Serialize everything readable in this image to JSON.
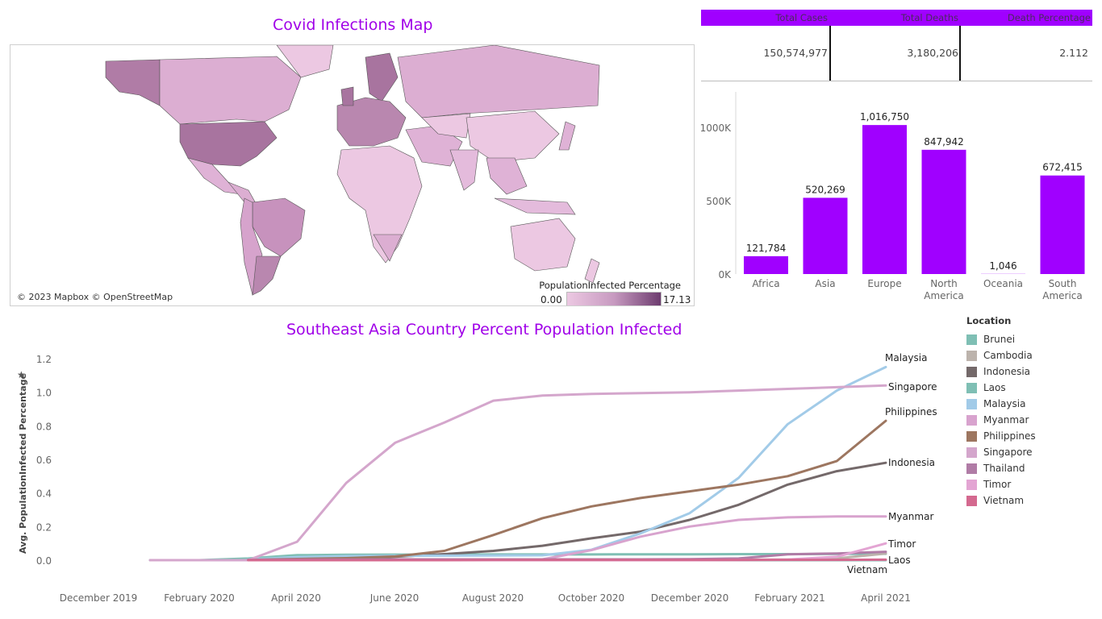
{
  "colors": {
    "accent": "#a000ff",
    "title": "#a000e8",
    "map_low": "#ecc8e2",
    "map_high": "#6d3c6f"
  },
  "map": {
    "title": "Covid Infections Map",
    "credit": "© 2023 Mapbox © OpenStreetMap",
    "legend_title": "PopulationInfected Percentage",
    "legend_min": "0.00",
    "legend_max": "17.13"
  },
  "kpi": {
    "headers": [
      "Total Cases",
      "Total Deaths",
      "Death Percentage"
    ],
    "values": [
      "150,574,977",
      "3,180,206",
      "2.112"
    ]
  },
  "chart_data": [
    {
      "type": "bar",
      "categories": [
        "Africa",
        "Asia",
        "Europe",
        "North America",
        "Oceania",
        "South America"
      ],
      "values": [
        121784,
        520269,
        1016750,
        847942,
        1046,
        672415
      ],
      "value_labels": [
        "121,784",
        "520,269",
        "1,016,750",
        "847,942",
        "1,046",
        "672,415"
      ],
      "yticks": [
        "0K",
        "500K",
        "1000K"
      ],
      "ylim": [
        0,
        1100000
      ],
      "color": "#a000ff",
      "grid": false
    },
    {
      "type": "line",
      "title": "Southeast Asia Country Percent Population Infected",
      "ylabel": "Avg. PopulationInfected Percentage",
      "xticks": [
        "December 2019",
        "February 2020",
        "April 2020",
        "June 2020",
        "August 2020",
        "October 2020",
        "December 2020",
        "February 2021",
        "April 2021"
      ],
      "x": [
        "2020-01",
        "2020-02",
        "2020-03",
        "2020-04",
        "2020-05",
        "2020-06",
        "2020-07",
        "2020-08",
        "2020-09",
        "2020-10",
        "2020-11",
        "2020-12",
        "2021-01",
        "2021-02",
        "2021-03",
        "2021-04"
      ],
      "yticks": [
        "0.0",
        "0.2",
        "0.4",
        "0.6",
        "0.8",
        "1.0",
        "1.2"
      ],
      "ylim": [
        0,
        1.2
      ],
      "legend_title": "Location",
      "legend_position": "right",
      "series": [
        {
          "name": "Brunei",
          "color": "#7fbfb4",
          "values": [
            0.0,
            0.0,
            0.01,
            0.03,
            0.032,
            0.033,
            0.033,
            0.034,
            0.034,
            0.034,
            0.035,
            0.035,
            0.036,
            0.036,
            0.037,
            0.038
          ]
        },
        {
          "name": "Cambodia",
          "color": "#bcb3ac",
          "values": [
            null,
            null,
            0.0,
            0.0,
            0.001,
            0.001,
            0.001,
            0.001,
            0.002,
            0.002,
            0.002,
            0.002,
            0.003,
            0.004,
            0.01,
            0.04
          ]
        },
        {
          "name": "Indonesia",
          "color": "#74696a",
          "values": [
            null,
            null,
            0.0,
            0.003,
            0.01,
            0.02,
            0.036,
            0.055,
            0.086,
            0.13,
            0.17,
            0.24,
            0.33,
            0.45,
            0.53,
            0.58
          ]
        },
        {
          "name": "Laos",
          "color": "#7fbfb4",
          "values": [
            null,
            null,
            0.0,
            0.0,
            0.0,
            0.0,
            0.0,
            0.0,
            0.0,
            0.0,
            0.0,
            0.0,
            0.0,
            0.0,
            0.0,
            0.0
          ]
        },
        {
          "name": "Malaysia",
          "color": "#a2cbe8",
          "values": [
            null,
            null,
            0.005,
            0.018,
            0.024,
            0.026,
            0.027,
            0.028,
            0.029,
            0.062,
            0.16,
            0.28,
            0.49,
            0.81,
            1.01,
            1.15
          ]
        },
        {
          "name": "Myanmar",
          "color": "#d8a3ce",
          "values": [
            null,
            null,
            0.0,
            0.0,
            0.0,
            0.0,
            0.0,
            0.001,
            0.005,
            0.06,
            0.14,
            0.2,
            0.24,
            0.255,
            0.26,
            0.26
          ]
        },
        {
          "name": "Philippines",
          "color": "#9d7660",
          "values": [
            null,
            null,
            0.002,
            0.007,
            0.012,
            0.022,
            0.055,
            0.15,
            0.25,
            0.32,
            0.37,
            0.41,
            0.45,
            0.5,
            0.59,
            0.83
          ]
        },
        {
          "name": "Singapore",
          "color": "#d4a6cc",
          "values": [
            0.0,
            0.0,
            0.0,
            0.11,
            0.46,
            0.7,
            0.82,
            0.95,
            0.98,
            0.99,
            0.995,
            1.0,
            1.01,
            1.02,
            1.03,
            1.04
          ]
        },
        {
          "name": "Thailand",
          "color": "#b07ca6",
          "values": [
            null,
            null,
            0.002,
            0.004,
            0.004,
            0.005,
            0.005,
            0.005,
            0.005,
            0.005,
            0.005,
            0.006,
            0.01,
            0.035,
            0.04,
            0.05
          ]
        },
        {
          "name": "Timor",
          "color": "#e3a5d3",
          "values": [
            null,
            null,
            null,
            null,
            null,
            0.0,
            0.0,
            0.0,
            0.0,
            0.0,
            0.0,
            0.0,
            0.001,
            0.004,
            0.02,
            0.1
          ]
        },
        {
          "name": "Vietnam",
          "color": "#d4698f",
          "values": [
            null,
            null,
            0.0,
            0.0,
            0.0,
            0.0,
            0.0,
            0.001,
            0.001,
            0.001,
            0.001,
            0.001,
            0.001,
            0.002,
            0.002,
            0.003
          ]
        }
      ],
      "end_labels": [
        "Malaysia",
        "Singapore",
        "Philippines",
        "Indonesia",
        "Myanmar",
        "Timor",
        "Laos",
        "Vietnam"
      ]
    }
  ]
}
